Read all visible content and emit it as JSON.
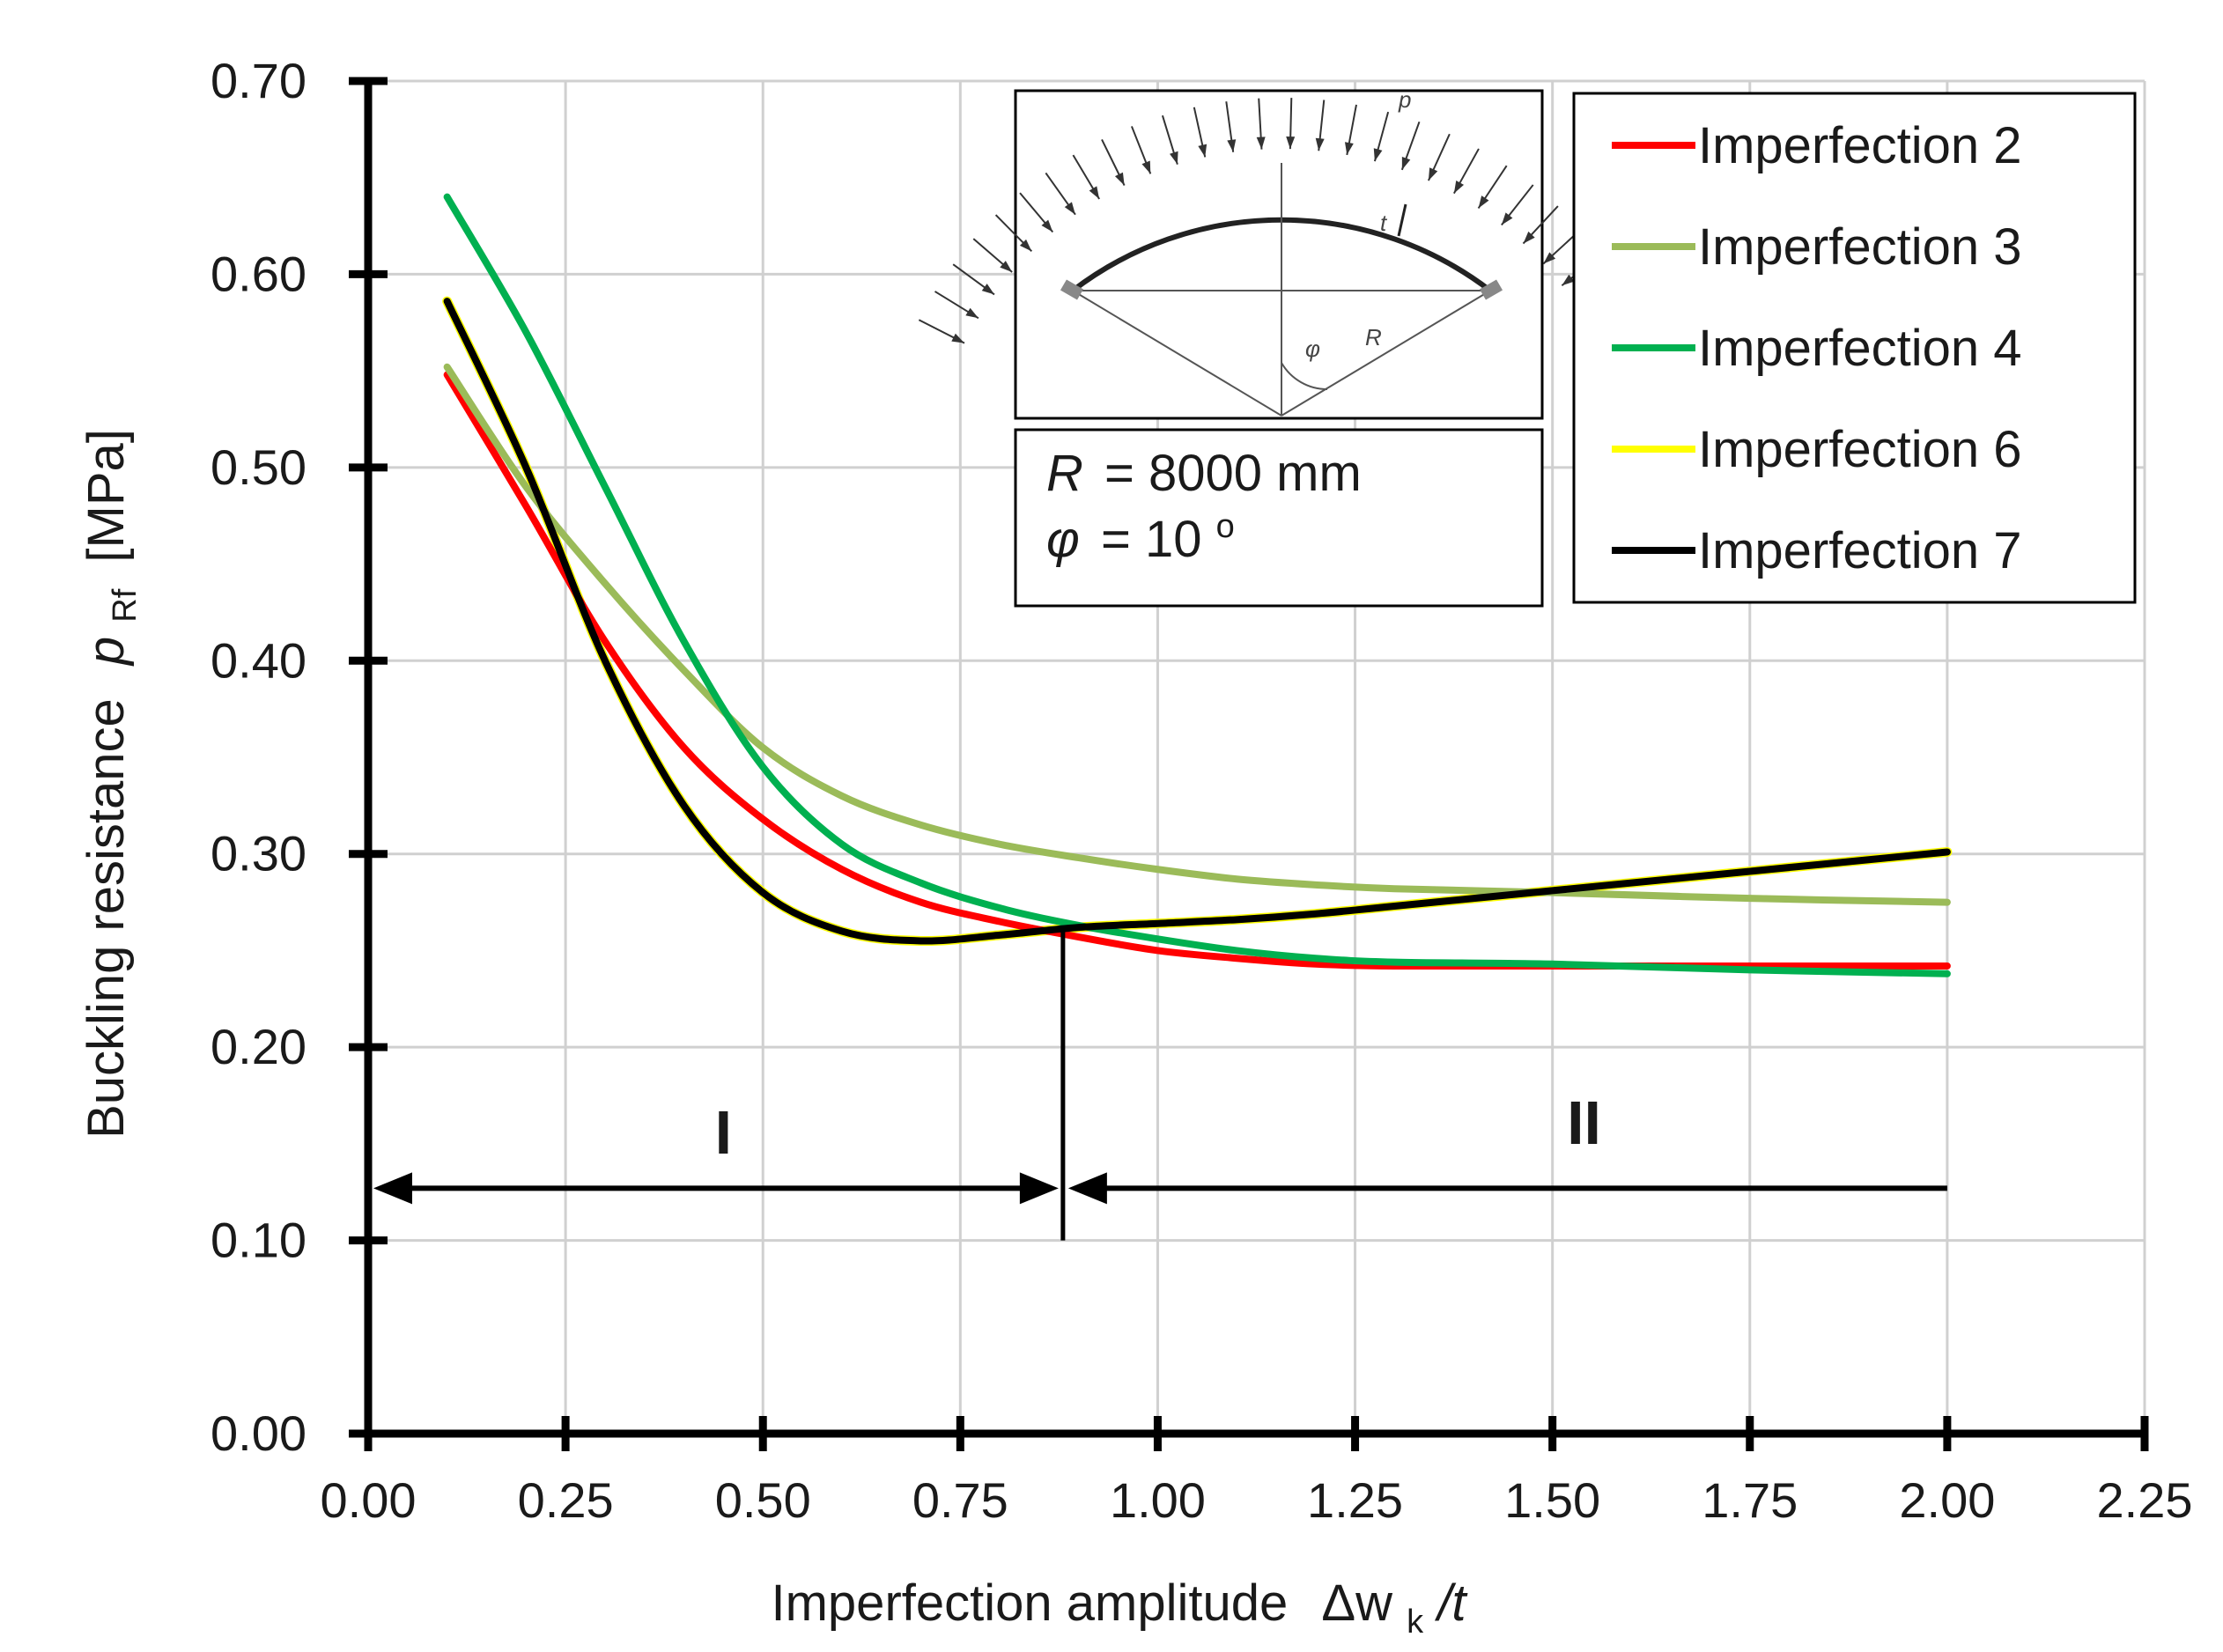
{
  "chart_data": {
    "type": "line",
    "title": "",
    "xlabel": "Imperfection amplitude",
    "xlabel_symbol": {
      "prefix": "Δw",
      "sub": "k",
      "suffix": "/t"
    },
    "ylabel": "Buckling resistance",
    "ylabel_symbol": {
      "main": "p",
      "sub": "Rf",
      "unit": "[MPa]"
    },
    "xlim": [
      0,
      2.25
    ],
    "ylim": [
      0,
      0.7
    ],
    "x_ticks": [
      "0.00",
      "0.25",
      "0.50",
      "0.75",
      "1.00",
      "1.25",
      "1.50",
      "1.75",
      "2.00",
      "2.25"
    ],
    "y_ticks": [
      "0.00",
      "0.10",
      "0.20",
      "0.30",
      "0.40",
      "0.50",
      "0.60",
      "0.70"
    ],
    "grid": true,
    "legend_position": "top-right",
    "series": [
      {
        "name": "Imperfection 2",
        "color": "#ff0000",
        "points": [
          [
            0.1,
            0.548
          ],
          [
            0.2,
            0.48
          ],
          [
            0.3,
            0.41
          ],
          [
            0.4,
            0.355
          ],
          [
            0.5,
            0.318
          ],
          [
            0.6,
            0.292
          ],
          [
            0.7,
            0.275
          ],
          [
            0.8,
            0.265
          ],
          [
            0.9,
            0.257
          ],
          [
            1.0,
            0.25
          ],
          [
            1.1,
            0.246
          ],
          [
            1.2,
            0.243
          ],
          [
            1.3,
            0.242
          ],
          [
            1.5,
            0.242
          ],
          [
            1.75,
            0.242
          ],
          [
            2.0,
            0.242
          ]
        ]
      },
      {
        "name": "Imperfection 3",
        "color": "#9bbb59",
        "points": [
          [
            0.1,
            0.552
          ],
          [
            0.2,
            0.49
          ],
          [
            0.3,
            0.44
          ],
          [
            0.4,
            0.395
          ],
          [
            0.5,
            0.355
          ],
          [
            0.6,
            0.33
          ],
          [
            0.7,
            0.315
          ],
          [
            0.8,
            0.305
          ],
          [
            0.9,
            0.298
          ],
          [
            1.0,
            0.292
          ],
          [
            1.1,
            0.287
          ],
          [
            1.2,
            0.284
          ],
          [
            1.3,
            0.282
          ],
          [
            1.5,
            0.28
          ],
          [
            1.75,
            0.277
          ],
          [
            2.0,
            0.275
          ]
        ]
      },
      {
        "name": "Imperfection 4",
        "color": "#00b050",
        "points": [
          [
            0.1,
            0.64
          ],
          [
            0.2,
            0.57
          ],
          [
            0.3,
            0.49
          ],
          [
            0.4,
            0.41
          ],
          [
            0.5,
            0.345
          ],
          [
            0.6,
            0.305
          ],
          [
            0.7,
            0.285
          ],
          [
            0.8,
            0.272
          ],
          [
            0.9,
            0.263
          ],
          [
            1.0,
            0.256
          ],
          [
            1.1,
            0.25
          ],
          [
            1.2,
            0.246
          ],
          [
            1.3,
            0.244
          ],
          [
            1.5,
            0.243
          ],
          [
            1.75,
            0.24
          ],
          [
            2.0,
            0.238
          ]
        ]
      },
      {
        "name": "Imperfection 6",
        "color": "#ffff00",
        "points": [
          [
            0.1,
            0.586
          ],
          [
            0.2,
            0.5
          ],
          [
            0.3,
            0.4
          ],
          [
            0.4,
            0.325
          ],
          [
            0.5,
            0.28
          ],
          [
            0.6,
            0.26
          ],
          [
            0.7,
            0.255
          ],
          [
            0.8,
            0.258
          ],
          [
            0.9,
            0.262
          ],
          [
            1.0,
            0.264
          ],
          [
            1.1,
            0.266
          ],
          [
            1.2,
            0.269
          ],
          [
            1.3,
            0.273
          ],
          [
            1.5,
            0.281
          ],
          [
            1.75,
            0.291
          ],
          [
            2.0,
            0.301
          ]
        ]
      },
      {
        "name": "Imperfection 7",
        "color": "#000000",
        "points": [
          [
            0.1,
            0.586
          ],
          [
            0.2,
            0.5
          ],
          [
            0.3,
            0.4
          ],
          [
            0.4,
            0.325
          ],
          [
            0.5,
            0.28
          ],
          [
            0.6,
            0.26
          ],
          [
            0.7,
            0.255
          ],
          [
            0.8,
            0.258
          ],
          [
            0.9,
            0.262
          ],
          [
            1.0,
            0.264
          ],
          [
            1.1,
            0.266
          ],
          [
            1.2,
            0.269
          ],
          [
            1.3,
            0.273
          ],
          [
            1.5,
            0.281
          ],
          [
            1.75,
            0.291
          ],
          [
            2.0,
            0.301
          ]
        ]
      }
    ],
    "annotations": {
      "boundary_x": 0.88,
      "boundary_y_top": 0.26,
      "boundary_y_bottom": 0.1,
      "arrow_y": 0.127,
      "region_I": {
        "label": "I",
        "x_start": 0.0,
        "x_end": 0.88,
        "label_x": 0.45,
        "label_y": 0.145
      },
      "region_II": {
        "label": "II",
        "x_start": 0.88,
        "x_end": 2.0,
        "label_x": 1.54,
        "label_y": 0.15
      }
    },
    "parameters": {
      "R_symbol": "R",
      "R_value": "= 8000 mm",
      "phi_symbol": "φ",
      "phi_value": "= 10",
      "phi_unit": "o"
    },
    "inset_labels": {
      "load": "p",
      "thickness": "t",
      "angle": "φ",
      "radius": "R"
    }
  }
}
